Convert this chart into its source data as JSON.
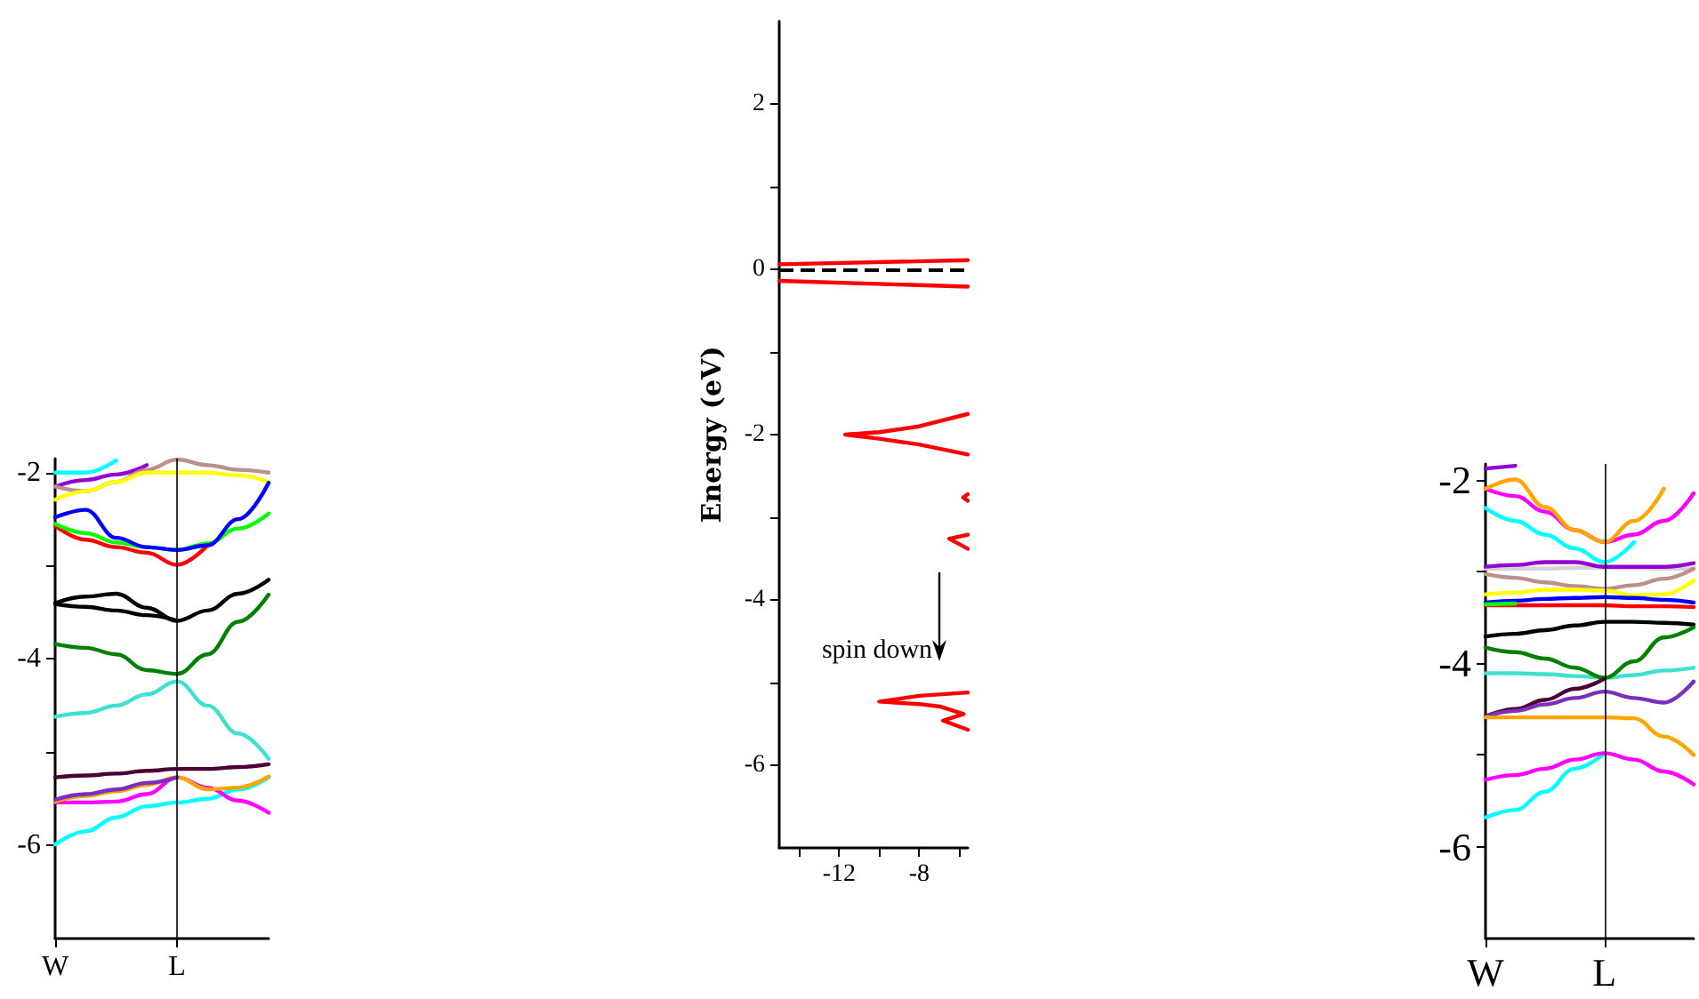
{
  "chart_data": [
    {
      "type": "line",
      "categories": [
        "W",
        null,
        null,
        null,
        "L",
        null,
        null,
        null
      ],
      "ylim": [
        -7,
        -1.85
      ],
      "yticks": [
        -2,
        {
          "value": -3,
          "label": null
        },
        -4,
        {
          "value": -5,
          "label": null
        },
        -6
      ],
      "grid": false,
      "ref_lines": [
        {
          "axis": "x",
          "value": "L",
          "color": "#000000",
          "line_style": "solid"
        }
      ],
      "series": [
        {
          "color": "#00ffff",
          "values": [
            -2.0,
            -2.0,
            -1.87,
            null,
            null,
            null,
            null,
            null
          ]
        },
        {
          "color": "#9400d3",
          "values": [
            -2.15,
            -2.08,
            -2.02,
            -1.92,
            null,
            null,
            null,
            null
          ]
        },
        {
          "color": "#bc8f8f",
          "values": [
            -2.15,
            -2.2,
            -2.1,
            -1.97,
            -1.86,
            -1.92,
            -1.97,
            -2.0
          ]
        },
        {
          "color": "#ffff00",
          "values": [
            -2.29,
            -2.2,
            -2.1,
            -2.0,
            -2.0,
            -2.0,
            -2.03,
            -2.1
          ]
        },
        {
          "color": "#ff0000",
          "values": [
            -2.57,
            -2.72,
            -2.8,
            -2.86,
            -2.99,
            -2.78,
            null,
            null
          ]
        },
        {
          "color": "#00ff00",
          "values": [
            -2.55,
            -2.65,
            -2.75,
            -2.8,
            -2.83,
            -2.76,
            -2.6,
            -2.44
          ]
        },
        {
          "color": "#0000ff",
          "values": [
            -2.48,
            -2.4,
            -2.7,
            -2.8,
            -2.83,
            -2.78,
            -2.5,
            -2.11
          ]
        },
        {
          "color": "#000000",
          "values": [
            -3.4,
            -3.33,
            -3.3,
            -3.45,
            -3.59,
            -3.48,
            -3.3,
            -3.15
          ]
        },
        {
          "color": "#000000",
          "values": [
            -3.41,
            -3.44,
            -3.48,
            -3.53,
            -3.59,
            null,
            null,
            null
          ]
        },
        {
          "color": "#008000",
          "values": [
            -3.84,
            -3.88,
            -3.95,
            -4.12,
            -4.16,
            -3.95,
            -3.6,
            -3.31
          ]
        },
        {
          "color": "#40e0d0",
          "values": [
            -4.62,
            -4.58,
            -4.5,
            -4.38,
            -4.24,
            -4.5,
            -4.8,
            -5.07
          ]
        },
        {
          "color": "#4b0036",
          "values": [
            -5.27,
            -5.25,
            -5.23,
            -5.2,
            -5.18,
            -5.18,
            -5.16,
            -5.13
          ]
        },
        {
          "color": "#00ffff",
          "values": [
            -5.99,
            -5.85,
            -5.7,
            -5.58,
            -5.54,
            -5.5,
            -5.4,
            -5.27
          ]
        },
        {
          "color": "#ff00ff",
          "values": [
            -5.54,
            -5.54,
            -5.53,
            -5.45,
            -5.27,
            -5.38,
            -5.52,
            -5.65
          ]
        },
        {
          "color": "#ffa500",
          "values": [
            -5.53,
            -5.47,
            -5.42,
            -5.35,
            -5.27,
            -5.4,
            -5.38,
            -5.26
          ]
        },
        {
          "color": "#7b2fbe",
          "values": [
            -5.51,
            -5.45,
            -5.4,
            -5.33,
            -5.27,
            null,
            null,
            null
          ]
        }
      ]
    },
    {
      "type": "line",
      "ylabel": "Energy (eV)",
      "xlim": [
        -15,
        -5.57
      ],
      "ylim": [
        -7,
        3
      ],
      "xticks": [
        {
          "value": -14,
          "label": null
        },
        -12,
        {
          "value": -10,
          "label": null
        },
        -8,
        {
          "value": -6,
          "label": null
        }
      ],
      "yticks": [
        2,
        {
          "value": 1,
          "label": null
        },
        0,
        {
          "value": -1,
          "label": null
        },
        -2,
        {
          "value": -3,
          "label": null
        },
        -4,
        {
          "value": -5,
          "label": null
        },
        -6
      ],
      "grid": false,
      "ref_lines": [
        {
          "axis": "y",
          "value": 0,
          "color": "#000000",
          "line_style": "dashed"
        }
      ],
      "annotations": [
        "spin down"
      ],
      "series": [
        {
          "color": "#ff0000",
          "x": [
            -15,
            -5.57
          ],
          "values": [
            0.06,
            0.11
          ]
        },
        {
          "color": "#fe0000",
          "x": [
            -15,
            -5.57
          ],
          "values": [
            -0.14,
            -0.21
          ]
        },
        {
          "color": "#fd0000",
          "x": [
            -5.57,
            -8,
            -10,
            -11.7,
            -10,
            -8,
            -5.57
          ],
          "values": [
            -1.75,
            -1.9,
            -1.97,
            -2.0,
            -2.05,
            -2.12,
            -2.24
          ]
        },
        {
          "color": "#fc0000",
          "x": [
            -5.57,
            -6.5,
            -5.57
          ],
          "values": [
            -3.21,
            -3.26,
            -3.38
          ]
        },
        {
          "color": "#fb0000",
          "x": [
            -5.57,
            -8,
            -10,
            -8,
            -6.96,
            -5.78,
            -6.81,
            -5.57
          ],
          "values": [
            -5.12,
            -5.16,
            -5.23,
            -5.26,
            -5.29,
            -5.38,
            -5.46,
            -5.57
          ]
        },
        {
          "color": "#fa0000",
          "x": [
            -5.57,
            -5.8,
            -5.57
          ],
          "values": [
            -2.72,
            -2.76,
            -2.8
          ]
        }
      ]
    },
    {
      "type": "line",
      "categories": [
        "W",
        null,
        null,
        null,
        "L",
        null,
        null,
        null
      ],
      "ylim": [
        -7,
        -1.83
      ],
      "yticks": [
        -2,
        {
          "value": -3,
          "label": null
        },
        -4,
        {
          "value": -5,
          "label": null
        },
        -6
      ],
      "grid": false,
      "ref_lines": [
        {
          "axis": "x",
          "value": "L",
          "color": "#000000",
          "line_style": "solid"
        }
      ],
      "series": [
        {
          "color": "#00ffff",
          "values": [
            -2.31,
            -2.45,
            -2.6,
            -2.75,
            -2.9,
            -2.68,
            null,
            null
          ]
        },
        {
          "color": "#ff00ff",
          "values": [
            -2.1,
            -2.18,
            -2.35,
            -2.55,
            -2.68,
            -2.6,
            -2.45,
            -2.15
          ]
        },
        {
          "color": "#ffa500",
          "values": [
            -2.1,
            -2.0,
            -2.3,
            -2.55,
            -2.68,
            -2.45,
            -2.1,
            null
          ]
        },
        {
          "color": "#9400d3",
          "values": [
            -1.88,
            -1.85,
            null,
            null,
            null,
            null,
            null,
            null
          ]
        },
        {
          "color": "#d3d3d3",
          "values": [
            -2.97,
            -2.97,
            -2.97,
            -2.96,
            -2.96,
            -2.96,
            -2.97,
            -2.97
          ]
        },
        {
          "color": "#9400d3",
          "values": [
            -2.95,
            -2.93,
            -2.9,
            -2.9,
            -2.95,
            -2.95,
            -2.95,
            -2.91
          ]
        },
        {
          "color": "#bc8f8f",
          "values": [
            -3.03,
            -3.07,
            -3.12,
            -3.16,
            -3.19,
            -3.15,
            -3.08,
            -2.97
          ]
        },
        {
          "color": "#ffff00",
          "values": [
            -3.25,
            -3.23,
            -3.2,
            -3.2,
            -3.21,
            -3.26,
            -3.25,
            -3.1
          ]
        },
        {
          "color": "#ff0000",
          "values": [
            -3.37,
            -3.37,
            -3.37,
            -3.37,
            -3.37,
            -3.38,
            -3.38,
            -3.39
          ]
        },
        {
          "color": "#0000ff",
          "values": [
            -3.34,
            -3.32,
            -3.3,
            -3.29,
            -3.28,
            -3.29,
            -3.31,
            -3.34
          ]
        },
        {
          "color": "#00ff00",
          "values": [
            -3.36,
            -3.35,
            null,
            null,
            null,
            null,
            null,
            null
          ]
        },
        {
          "color": "#000000",
          "values": [
            -3.71,
            -3.68,
            -3.64,
            -3.59,
            -3.55,
            -3.55,
            -3.56,
            -3.58
          ]
        },
        {
          "color": "#40e0d0",
          "values": [
            -4.11,
            -4.11,
            -4.12,
            -4.14,
            -4.16,
            -4.13,
            -4.08,
            -4.05
          ]
        },
        {
          "color": "#008000",
          "values": [
            -3.83,
            -3.88,
            -3.95,
            -4.05,
            -4.16,
            -3.98,
            -3.72,
            -3.61
          ]
        },
        {
          "color": "#4b0036",
          "values": [
            -4.58,
            -4.5,
            -4.4,
            -4.28,
            -4.17,
            null,
            null,
            null
          ]
        },
        {
          "color": "#7b2fbe",
          "values": [
            -4.58,
            -4.52,
            -4.45,
            -4.38,
            -4.31,
            -4.38,
            -4.43,
            -4.2
          ]
        },
        {
          "color": "#ffa500",
          "values": [
            -4.59,
            -4.59,
            -4.59,
            -4.59,
            -4.59,
            -4.6,
            -4.8,
            -5.0
          ]
        },
        {
          "color": "#00ffff",
          "values": [
            -5.68,
            -5.6,
            -5.4,
            -5.15,
            -4.98,
            null,
            null,
            null
          ]
        },
        {
          "color": "#ff00ff",
          "values": [
            -5.27,
            -5.22,
            -5.15,
            -5.05,
            -4.98,
            -5.05,
            -5.18,
            -5.32
          ]
        }
      ]
    }
  ]
}
